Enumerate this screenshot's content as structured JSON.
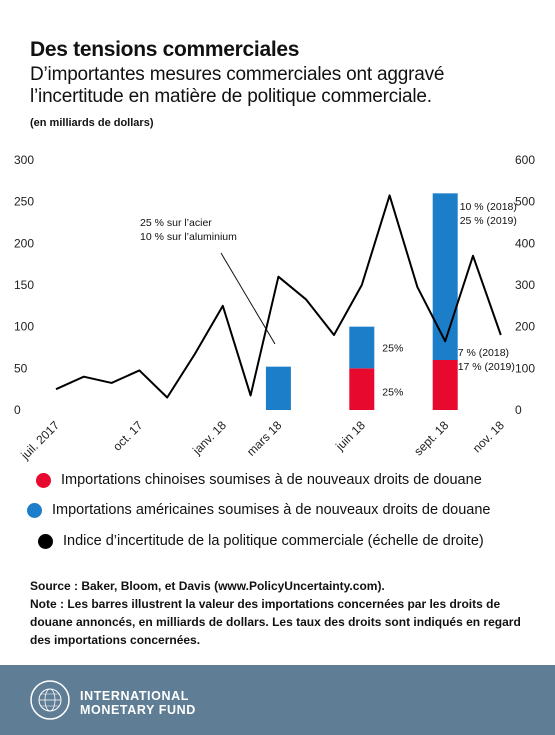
{
  "header": {
    "title": "Des tensions commerciales",
    "subtitle": "D’importantes mesures commerciales ont aggravé l’incertitude en matière de politique commerciale.",
    "unit": "(en milliards de dollars)"
  },
  "chart_data": {
    "type": "bar+line",
    "left_axis": {
      "ticks": [
        0,
        50,
        100,
        150,
        200,
        250,
        300
      ],
      "range": [
        0,
        300
      ]
    },
    "right_axis": {
      "ticks": [
        0,
        100,
        200,
        300,
        400,
        500,
        600
      ],
      "range": [
        0,
        600
      ]
    },
    "x_tick_labels": [
      "juil. 2017",
      "oct. 17",
      "janv. 18",
      "mars 18",
      "juin 18",
      "sept. 18",
      "nov. 18"
    ],
    "months": [
      "juil. 2017",
      "août 2017",
      "sept. 2017",
      "oct. 2017",
      "nov. 2017",
      "déc. 2017",
      "janv. 2018",
      "févr. 2018",
      "mars 2018",
      "avr. 2018",
      "mai 2018",
      "juin 2018",
      "juil. 2018",
      "août 2018",
      "sept. 2018",
      "oct. 2018",
      "nov. 2018"
    ],
    "line_series": {
      "name": "Indice d’incertitude de la politique commerciale (échelle de droite)",
      "color": "#000000",
      "values": [
        50,
        80,
        65,
        95,
        30,
        135,
        250,
        35,
        320,
        265,
        180,
        300,
        515,
        295,
        165,
        370,
        180
      ]
    },
    "bar_series": [
      {
        "name": "Importations chinoises soumises à de nouveaux droits de douane",
        "color": "#e8092e",
        "values": [
          {
            "month": "juin 2018",
            "value": 50
          },
          {
            "month": "sept. 2018",
            "value": 60
          }
        ]
      },
      {
        "name": "Importations américaines soumises à de nouveaux droits de douane",
        "color": "#1c7dc9",
        "values": [
          {
            "month": "mars 2018",
            "value": 52
          },
          {
            "month": "juin 2018",
            "value": 50
          },
          {
            "month": "sept. 2018",
            "value": 200
          }
        ]
      }
    ],
    "annotations": [
      {
        "lines": [
          "25 % sur l’acier",
          "10 % sur l’aluminium"
        ],
        "target_month": "mars 2018"
      },
      {
        "lines": [
          "25%"
        ],
        "target_month": "juin 2018",
        "series": "Importations américaines soumises à de nouveaux droits de douane"
      },
      {
        "lines": [
          "25%"
        ],
        "target_month": "juin 2018",
        "series": "Importations chinoises soumises à de nouveaux droits de douane"
      },
      {
        "lines": [
          "10 % (2018)",
          "25 % (2019)"
        ],
        "target_month": "sept. 2018",
        "series": "Importations américaines soumises à de nouveaux droits de douane"
      },
      {
        "lines": [
          "7 % (2018)",
          "17 % (2019)"
        ],
        "target_month": "sept. 2018",
        "series": "Importations chinoises soumises à de nouveaux droits de douane"
      }
    ],
    "grid": false,
    "legend_position": "bottom"
  },
  "legend": [
    {
      "label": "Importations chinoises soumises à de nouveaux droits de douane",
      "color": "#e8092e"
    },
    {
      "label": "Importations américaines soumises à de nouveaux droits de douane",
      "color": "#1c7dc9"
    },
    {
      "label": "Indice d’incertitude de la politique commerciale (échelle de droite)",
      "color": "#000000"
    }
  ],
  "notes": {
    "source": "Source : Baker, Bloom, et Davis (www.PolicyUncertainty.com).",
    "note": "Note : Les barres illustrent la valeur des importations concernées par les droits de douane annoncés, en milliards de dollars. Les taux des droits sont indiqués en regard des importations concernées."
  },
  "footer": {
    "org_line1": "INTERNATIONAL",
    "org_line2": "MONETARY FUND",
    "seal_text": "INTERNATIONAL MONETARY FUND"
  }
}
